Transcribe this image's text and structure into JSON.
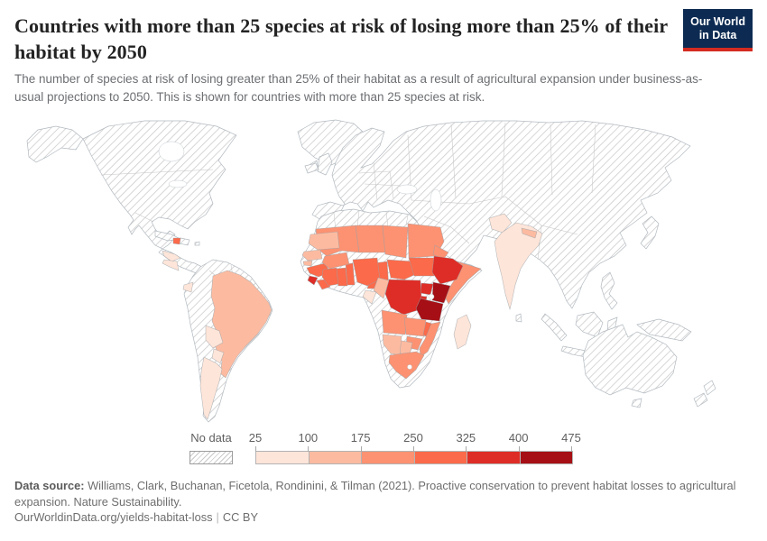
{
  "header": {
    "title": "Countries with more than 25 species at risk of losing more than 25% of their habitat by 2050",
    "subtitle": "The number of species at risk of losing greater than 25% of their habitat as a result of agricultural expansion under business-as-usual projections to 2050. This is shown for countries with more than 25 species at risk.",
    "logo": {
      "line1": "Our World",
      "line2": "in Data"
    }
  },
  "legend": {
    "no_data_label": "No data",
    "tick_labels": [
      "25",
      "100",
      "175",
      "250",
      "325",
      "400",
      "475"
    ]
  },
  "footer": {
    "source_label": "Data source:",
    "source_text": " Williams, Clark, Buchanan, Ficetola, Rondinini, & Tilman (2021). Proactive conservation to prevent habitat losses to agricultural expansion. Nature Sustainability.",
    "url": "OurWorldinData.org/yields-habitat-loss",
    "separator": "|",
    "license": "CC BY"
  },
  "colors": {
    "logo_navy": "#0d2b52",
    "logo_red": "#d42b21",
    "title_text": "#232323",
    "subtitle_text": "#6d6f73",
    "legend_text": "#5f5f5f",
    "hatch_line": "#c9c9c9"
  },
  "chart_data": {
    "type": "heatmap",
    "subtype": "world-choropleth",
    "title": "Countries with more than 25 species at risk of losing more than 25% of their habitat by 2050",
    "metric": "Number of species at risk of losing more than 25% of habitat by 2050",
    "legend_position": "bottom",
    "no_data": {
      "label": "No data",
      "pattern": "diagonal-hatch"
    },
    "legend_bins": [
      {
        "label": "25-100",
        "min": 25,
        "max": 100,
        "color": "#fee5d9"
      },
      {
        "label": "100-175",
        "min": 100,
        "max": 175,
        "color": "#fcbba1"
      },
      {
        "label": "175-250",
        "min": 175,
        "max": 250,
        "color": "#fc9272"
      },
      {
        "label": "250-325",
        "min": 250,
        "max": 325,
        "color": "#fb6a4a"
      },
      {
        "label": "325-400",
        "min": 325,
        "max": 400,
        "color": "#de2d26"
      },
      {
        "label": "400-475",
        "min": 400,
        "max": 475,
        "color": "#a50f15"
      }
    ],
    "countries": {
      "Honduras": "25-100",
      "Nicaragua": "25-100",
      "Ecuador": "25-100",
      "Bolivia": "25-100",
      "Paraguay": "25-100",
      "Argentina": "25-100",
      "Gabon": "25-100",
      "Madagascar": "25-100",
      "India": "25-100",
      "Pakistan": "25-100",
      "Brazil": "100-175",
      "Mauritania": "100-175",
      "Senegal": "100-175",
      "Guinea-Bissau": "100-175",
      "Republic of the Congo": "100-175",
      "Namibia": "100-175",
      "Botswana": "100-175",
      "Nepal": "100-175",
      "Mali": "175-250",
      "Niger": "175-250",
      "Chad": "175-250",
      "Sudan": "175-250",
      "Eritrea": "175-250",
      "Burkina Faso": "175-250",
      "Somalia": "175-250",
      "Angola": "175-250",
      "Zambia": "175-250",
      "Mozambique": "175-250",
      "Zimbabwe": "175-250",
      "South Africa": "175-250",
      "Guinea": "250-325",
      "Liberia": "250-325",
      "Cote d'Ivoire": "250-325",
      "Ghana": "250-325",
      "Togo": "250-325",
      "Benin": "250-325",
      "Nigeria": "250-325",
      "Cameroon": "250-325",
      "Central African Republic": "250-325",
      "South Sudan": "250-325",
      "Malawi": "250-325",
      "Haiti": "250-325",
      "Sierra Leone": "325-400",
      "Ethiopia": "325-400",
      "Uganda": "325-400",
      "Democratic Republic of Congo": "325-400",
      "Rwanda": "325-400",
      "Burundi": "325-400",
      "Kenya": "400-475",
      "Tanzania": "400-475"
    }
  }
}
